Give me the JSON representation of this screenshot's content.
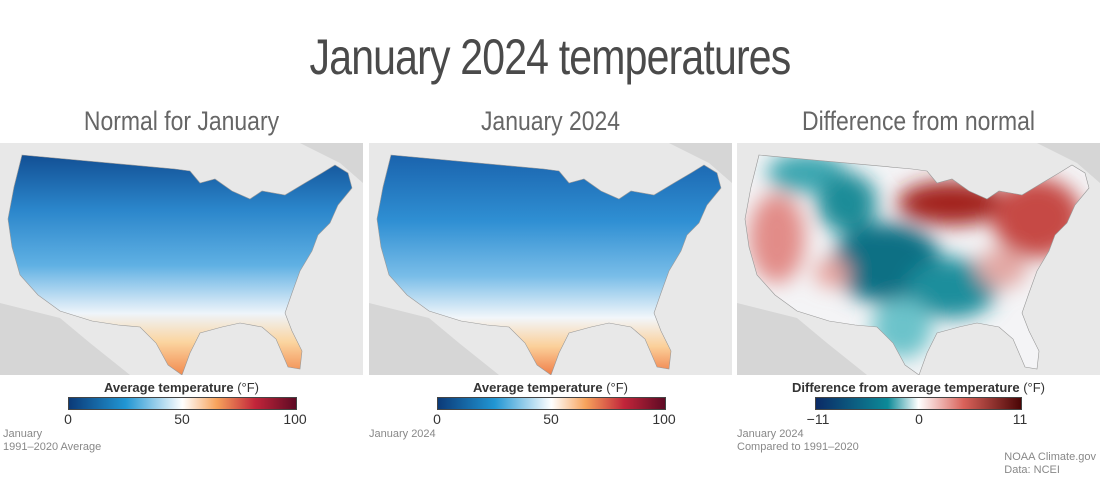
{
  "title": "January 2024 temperatures",
  "panels": [
    {
      "title": "Normal for January",
      "legend_title": "Average temperature",
      "legend_unit": "(°F)",
      "ticks": [
        "0",
        "50",
        "100"
      ],
      "note_line1": "January",
      "note_line2": "1991–2020 Average"
    },
    {
      "title": "January 2024",
      "legend_title": "Average temperature",
      "legend_unit": "(°F)",
      "ticks": [
        "0",
        "50",
        "100"
      ],
      "note_line1": "January 2024",
      "note_line2": ""
    },
    {
      "title": "Difference from normal",
      "legend_title": "Difference from average temperature",
      "legend_unit": "(°F)",
      "ticks": [
        "−11",
        "0",
        "11"
      ],
      "note_line1": "January 2024",
      "note_line2": "Compared to 1991–2020"
    }
  ],
  "credit_line1": "NOAA Climate.gov",
  "credit_line2": "Data: NCEI",
  "colors": {
    "temp_scale": [
      "#0b3a78",
      "#2f8fd0",
      "#ffffff",
      "#f7a35c",
      "#c2253a",
      "#5e0a24"
    ],
    "diff_scale": [
      "#0b2a66",
      "#0c8a98",
      "#ffffff",
      "#d9625a",
      "#4a0505"
    ]
  }
}
